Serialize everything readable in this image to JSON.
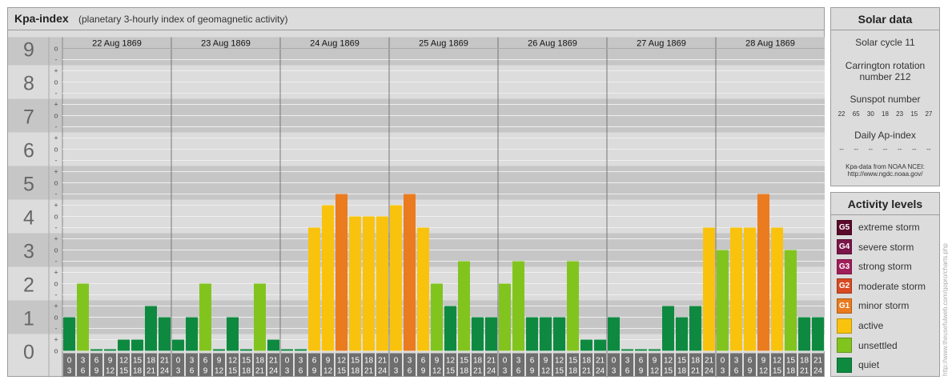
{
  "header": {
    "title": "Kpa-index",
    "subtitle": "(planetary 3-hourly index of geomagnetic activity)"
  },
  "solar": {
    "title": "Solar data",
    "cycle": "Solar cycle 11",
    "carrington_1": "Carrington rotation",
    "carrington_2": "number 212",
    "sunspot_label": "Sunspot number",
    "sunspot_values": [
      "22",
      "65",
      "30",
      "18",
      "23",
      "15",
      "27"
    ],
    "ap_label": "Daily Ap-index",
    "ap_values": [
      "--",
      "--",
      "--",
      "--",
      "--",
      "--",
      "--"
    ],
    "source_1": "Kpa-data from NOAA NCEI:",
    "source_2": "http://www.ngdc.noaa.gov/"
  },
  "levels": {
    "title": "Activity levels",
    "items": [
      {
        "badge": "G5",
        "label": "extreme storm",
        "color": "#5a0a2a"
      },
      {
        "badge": "G4",
        "label": "severe storm",
        "color": "#7a1648"
      },
      {
        "badge": "G3",
        "label": "strong storm",
        "color": "#a01e5a"
      },
      {
        "badge": "G2",
        "label": "moderate storm",
        "color": "#d84a23"
      },
      {
        "badge": "G1",
        "label": "minor storm",
        "color": "#ea7b1e"
      },
      {
        "badge": "",
        "label": "active",
        "color": "#f9c30d"
      },
      {
        "badge": "",
        "label": "unsettled",
        "color": "#82c41e"
      },
      {
        "badge": "",
        "label": "quiet",
        "color": "#0e8a40"
      }
    ]
  },
  "watermark": "http://www.theusefulweb.com/gopro/charts.php",
  "chart_data": {
    "type": "bar",
    "title": "Kpa-index",
    "subtitle": "(planetary 3-hourly index of geomagnetic activity)",
    "ylim": [
      0,
      9
    ],
    "y_ticks": [
      "0",
      "1",
      "2",
      "3",
      "4",
      "5",
      "6",
      "7",
      "8",
      "9"
    ],
    "y_minor_ticks": [
      "o",
      "+",
      "-"
    ],
    "days": [
      "22 Aug 1869",
      "23 Aug 1869",
      "24 Aug 1869",
      "25 Aug 1869",
      "26 Aug 1869",
      "27 Aug 1869",
      "28 Aug 1869"
    ],
    "interval_start": [
      "0",
      "3",
      "6",
      "9",
      "12",
      "15",
      "18",
      "21"
    ],
    "interval_end": [
      "3",
      "6",
      "9",
      "12",
      "15",
      "18",
      "21",
      "24"
    ],
    "values": [
      [
        1,
        2,
        0,
        0,
        0.333,
        0.333,
        1.333,
        1
      ],
      [
        0.333,
        1,
        2,
        0,
        1,
        0,
        2,
        0.333
      ],
      [
        0,
        0,
        3.667,
        4.333,
        4.667,
        4,
        4,
        4
      ],
      [
        4.333,
        4.667,
        3.667,
        2,
        1.333,
        2.667,
        1,
        1
      ],
      [
        2,
        2.667,
        1,
        1,
        1,
        2.667,
        0.333,
        0.333
      ],
      [
        1,
        0,
        0,
        0,
        1.333,
        1,
        1.333,
        3.667
      ],
      [
        3,
        3.667,
        3.667,
        4.667,
        3.667,
        3,
        1,
        1
      ]
    ]
  }
}
